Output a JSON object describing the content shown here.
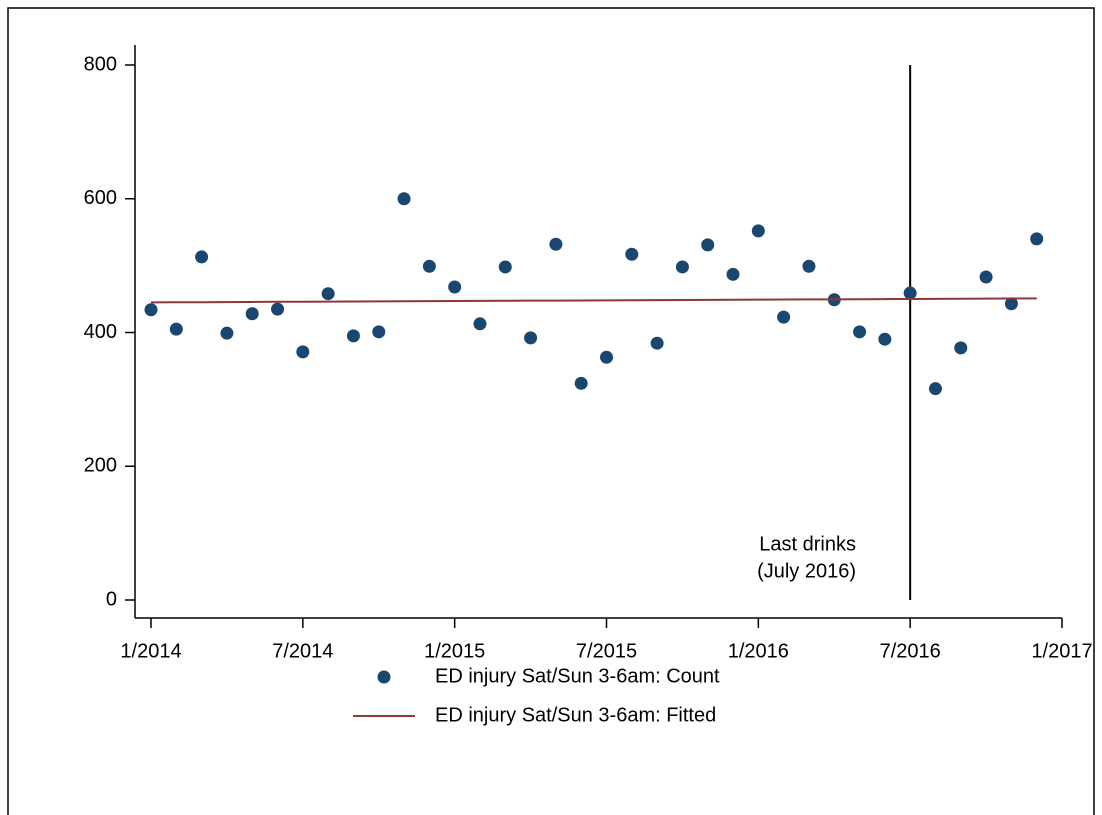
{
  "chart_data": {
    "type": "scatter",
    "x": [
      "1/2014",
      "2/2014",
      "3/2014",
      "4/2014",
      "5/2014",
      "6/2014",
      "7/2014",
      "8/2014",
      "9/2014",
      "10/2014",
      "11/2014",
      "12/2014",
      "1/2015",
      "2/2015",
      "3/2015",
      "4/2015",
      "5/2015",
      "6/2015",
      "7/2015",
      "8/2015",
      "9/2015",
      "10/2015",
      "11/2015",
      "12/2015",
      "1/2016",
      "2/2016",
      "3/2016",
      "4/2016",
      "5/2016",
      "6/2016",
      "7/2016",
      "8/2016",
      "9/2016",
      "10/2016",
      "11/2016",
      "12/2016"
    ],
    "series": [
      {
        "name": "ED injury Sat/Sun 3-6am: Count",
        "kind": "scatter",
        "color": "#1a476f",
        "values": [
          434,
          405,
          513,
          399,
          428,
          435,
          371,
          458,
          395,
          401,
          600,
          499,
          468,
          413,
          498,
          392,
          532,
          324,
          363,
          517,
          384,
          498,
          531,
          487,
          552,
          423,
          499,
          449,
          401,
          390,
          459,
          316,
          377,
          483,
          443,
          540
        ]
      },
      {
        "name": "ED injury Sat/Sun 3-6am: Fitted",
        "kind": "line",
        "color": "#90353b",
        "values": [
          445,
          445.2,
          445.3,
          445.5,
          445.7,
          445.9,
          446,
          446.2,
          446.4,
          446.5,
          446.7,
          446.9,
          447.1,
          447.2,
          447.4,
          447.6,
          447.7,
          447.9,
          448.1,
          448.3,
          448.4,
          448.6,
          448.8,
          448.9,
          449.1,
          449.3,
          449.5,
          449.6,
          449.8,
          450,
          450.1,
          450.3,
          450.5,
          450.7,
          450.8,
          451
        ]
      }
    ],
    "xlim": [
      "1/2014",
      "1/2017"
    ],
    "xticks": [
      "1/2014",
      "7/2014",
      "1/2015",
      "7/2015",
      "1/2016",
      "7/2016",
      "1/2017"
    ],
    "ylim": [
      0,
      800
    ],
    "yticks": [
      0,
      200,
      400,
      600,
      800
    ],
    "vline": {
      "x": "7/2016"
    },
    "annotation": [
      "Last drinks",
      "(July 2016)"
    ],
    "legend": "bottom"
  }
}
